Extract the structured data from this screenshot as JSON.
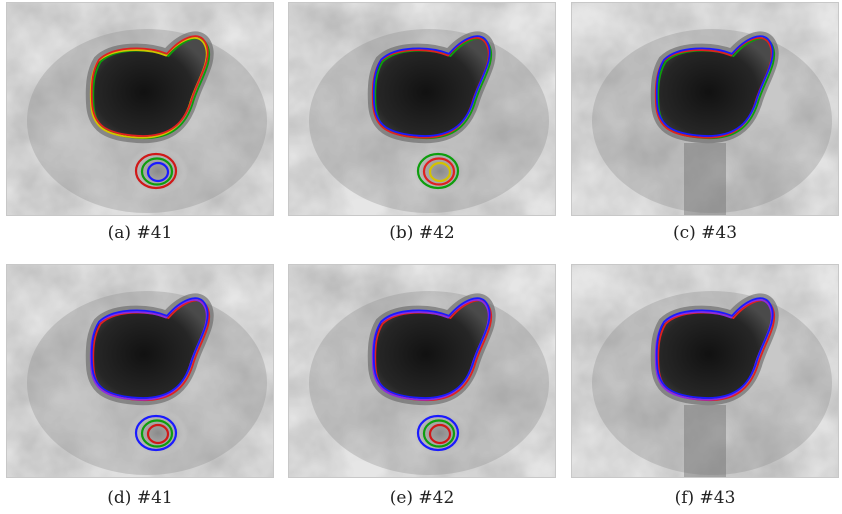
{
  "figure": {
    "panels": [
      {
        "id": "a",
        "caption": "(a) #41",
        "contour_colors": [
          "#0d9e0d",
          "#d4c200",
          "#e02020"
        ],
        "has_second_object": true,
        "blob_contour_colors": [
          "#d01818",
          "#0d9e0d",
          "#1a1aff"
        ]
      },
      {
        "id": "b",
        "caption": "(b) #42",
        "contour_colors": [
          "#0d9e0d",
          "#e02020",
          "#1a1aff"
        ],
        "has_second_object": true,
        "blob_contour_colors": [
          "#0d9e0d",
          "#e02020",
          "#d4c200"
        ]
      },
      {
        "id": "c",
        "caption": "(c) #43",
        "contour_colors": [
          "#0d9e0d",
          "#e02020",
          "#1a1aff"
        ],
        "has_second_object": false,
        "blob_contour_colors": []
      },
      {
        "id": "d",
        "caption": "(d) #41",
        "contour_colors": [
          "#e02020",
          "#8a2be2",
          "#1a1aff"
        ],
        "has_second_object": true,
        "blob_contour_colors": [
          "#1a1aff",
          "#0d9e0d",
          "#d01818"
        ]
      },
      {
        "id": "e",
        "caption": "(e) #42",
        "contour_colors": [
          "#e02020",
          "#8a2be2",
          "#1a1aff"
        ],
        "has_second_object": true,
        "blob_contour_colors": [
          "#1a1aff",
          "#0d9e0d",
          "#d01818"
        ]
      },
      {
        "id": "f",
        "caption": "(f) #43",
        "contour_colors": [
          "#e02020",
          "#8a2be2",
          "#1a1aff"
        ],
        "has_second_object": false,
        "blob_contour_colors": []
      }
    ]
  }
}
